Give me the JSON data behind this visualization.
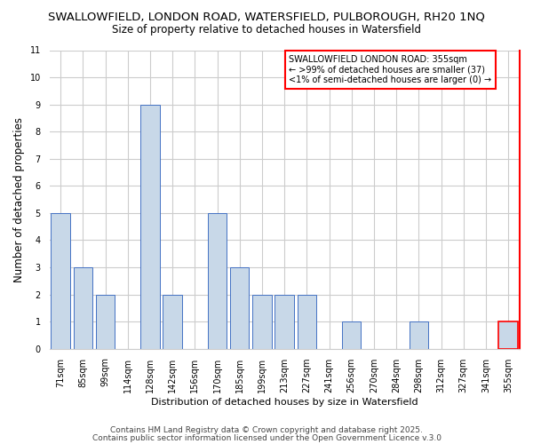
{
  "title1": "SWALLOWFIELD, LONDON ROAD, WATERSFIELD, PULBOROUGH, RH20 1NQ",
  "title2": "Size of property relative to detached houses in Watersfield",
  "xlabel": "Distribution of detached houses by size in Watersfield",
  "ylabel": "Number of detached properties",
  "categories": [
    "71sqm",
    "85sqm",
    "99sqm",
    "114sqm",
    "128sqm",
    "142sqm",
    "156sqm",
    "170sqm",
    "185sqm",
    "199sqm",
    "213sqm",
    "227sqm",
    "241sqm",
    "256sqm",
    "270sqm",
    "284sqm",
    "298sqm",
    "312sqm",
    "327sqm",
    "341sqm",
    "355sqm"
  ],
  "values": [
    5,
    3,
    2,
    0,
    9,
    2,
    0,
    5,
    3,
    2,
    2,
    2,
    0,
    1,
    0,
    0,
    1,
    0,
    0,
    0,
    1
  ],
  "bar_color": "#c8d8e8",
  "bar_edge_color": "#4472c4",
  "highlight_index": 20,
  "highlight_edge_color": "#ff0000",
  "ylim": [
    0,
    11
  ],
  "yticks": [
    0,
    1,
    2,
    3,
    4,
    5,
    6,
    7,
    8,
    9,
    10,
    11
  ],
  "grid_color": "#cccccc",
  "background_color": "#ffffff",
  "annotation_title": "SWALLOWFIELD LONDON ROAD: 355sqm",
  "annotation_line1": "← >99% of detached houses are smaller (37)",
  "annotation_line2": "<1% of semi-detached houses are larger (0) →",
  "annotation_box_edge": "#ff0000",
  "footer1": "Contains HM Land Registry data © Crown copyright and database right 2025.",
  "footer2": "Contains public sector information licensed under the Open Government Licence v.3.0",
  "title_fontsize": 9.5,
  "subtitle_fontsize": 8.5,
  "tick_fontsize": 7,
  "ylabel_fontsize": 8.5,
  "xlabel_fontsize": 8,
  "annotation_fontsize": 7,
  "footer_fontsize": 6.5
}
